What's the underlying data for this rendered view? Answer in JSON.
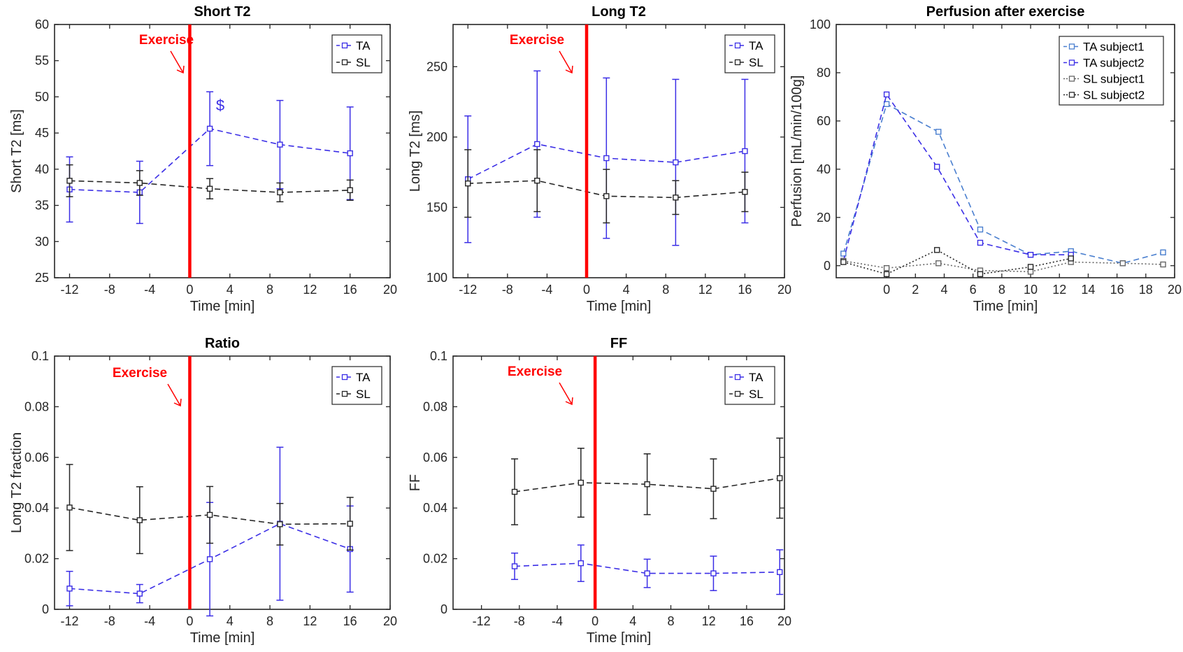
{
  "colors": {
    "ta": "#3b2ee6",
    "sl": "#262626",
    "ta_subject1": "#4a7fcf",
    "ta_subject2": "#3b2ee6",
    "sl_subject1": "#666666",
    "sl_subject2": "#262626",
    "exercise": "#ff0000"
  },
  "chart_data": [
    {
      "id": "short_t2",
      "type": "line",
      "title": "Short T2",
      "xlabel": "Time [min]",
      "ylabel": "Short T2 [ms]",
      "xlim": [
        -13.5,
        20
      ],
      "ylim": [
        25,
        60
      ],
      "xticks": [
        -12,
        -8,
        -4,
        0,
        4,
        8,
        12,
        16,
        20
      ],
      "xtick_labels": [
        "-12",
        "-8",
        "-4",
        "0",
        "4",
        "8",
        "12",
        "16",
        "20"
      ],
      "yticks": [
        25,
        30,
        35,
        40,
        45,
        50,
        55,
        60
      ],
      "ytick_labels": [
        "25",
        "30",
        "35",
        "40",
        "45",
        "50",
        "55",
        "60"
      ],
      "exercise_x": 0,
      "exercise_label": "Exercise",
      "annotation": "$",
      "legend": [
        "TA",
        "SL"
      ],
      "series": [
        {
          "name": "TA",
          "color_key": "ta",
          "dash": "dashed",
          "x": [
            -12,
            -5,
            2,
            9,
            16
          ],
          "y": [
            37.2,
            36.8,
            45.6,
            43.4,
            42.2
          ],
          "err": [
            4.5,
            4.3,
            5.1,
            6.1,
            6.4
          ]
        },
        {
          "name": "SL",
          "color_key": "sl",
          "dash": "dashed",
          "x": [
            -12,
            -5,
            2,
            9,
            16
          ],
          "y": [
            38.4,
            38.1,
            37.3,
            36.8,
            37.1
          ],
          "err": [
            2.2,
            1.7,
            1.4,
            1.3,
            1.4
          ]
        }
      ]
    },
    {
      "id": "long_t2",
      "type": "line",
      "title": "Long T2",
      "xlabel": "Time [min]",
      "ylabel": "Long T2 [ms]",
      "xlim": [
        -13.5,
        20
      ],
      "ylim": [
        100,
        280
      ],
      "xticks": [
        -12,
        -8,
        -4,
        0,
        4,
        8,
        12,
        16,
        20
      ],
      "xtick_labels": [
        "-12",
        "-8",
        "-4",
        "0",
        "4",
        "8",
        "12",
        "16",
        "20"
      ],
      "yticks": [
        100,
        150,
        200,
        250
      ],
      "ytick_labels": [
        "100",
        "150",
        "200",
        "250"
      ],
      "exercise_x": 0,
      "exercise_label": "Exercise",
      "legend": [
        "TA",
        "SL"
      ],
      "series": [
        {
          "name": "TA",
          "color_key": "ta",
          "dash": "dashed",
          "x": [
            -12,
            -5,
            2,
            9,
            16
          ],
          "y": [
            170,
            195,
            185,
            182,
            190
          ],
          "err": [
            45,
            52,
            57,
            59,
            51
          ]
        },
        {
          "name": "SL",
          "color_key": "sl",
          "dash": "dashed",
          "x": [
            -12,
            -5,
            2,
            9,
            16
          ],
          "y": [
            167,
            169,
            158,
            157,
            161
          ],
          "err": [
            24,
            22,
            19,
            12,
            14
          ]
        }
      ]
    },
    {
      "id": "perfusion",
      "type": "line",
      "title": "Perfusion after exercise",
      "xlabel": "Time [min]",
      "ylabel": "Perfusion [mL/min/100g]",
      "xlim": [
        -3.5,
        20
      ],
      "ylim": [
        -5,
        100
      ],
      "xticks": [
        0,
        2,
        4,
        6,
        8,
        10,
        12,
        14,
        16,
        18,
        20
      ],
      "xtick_labels": [
        "0",
        "2",
        "4",
        "6",
        "8",
        "10",
        "12",
        "14",
        "16",
        "18",
        "20"
      ],
      "yticks": [
        0,
        20,
        40,
        60,
        80,
        100
      ],
      "ytick_labels": [
        "0",
        "20",
        "40",
        "60",
        "80",
        "100"
      ],
      "legend": [
        "TA subject1",
        "TA subject2",
        "SL subject1",
        "SL subject2"
      ],
      "series": [
        {
          "name": "TA subject1",
          "color_key": "ta_subject1",
          "dash": "dashed",
          "x": [
            -3,
            0,
            3.6,
            6.5,
            10,
            12.8,
            16.4,
            19.2
          ],
          "y": [
            5,
            67,
            55.5,
            15,
            4.5,
            6,
            1,
            5.5
          ]
        },
        {
          "name": "TA subject2",
          "color_key": "ta_subject2",
          "dash": "dashed",
          "x": [
            -3,
            0,
            3.5,
            6.5,
            10,
            12.8
          ],
          "y": [
            2,
            71,
            41,
            9.5,
            4.5,
            4.5
          ]
        },
        {
          "name": "SL subject1",
          "color_key": "sl_subject1",
          "dash": "dotted",
          "x": [
            -3,
            0,
            3.6,
            6.5,
            10,
            12.8,
            16.4,
            19.2
          ],
          "y": [
            2,
            -1,
            1,
            -2,
            -2.5,
            1.5,
            1,
            0.5
          ]
        },
        {
          "name": "SL subject2",
          "color_key": "sl_subject2",
          "dash": "dotted",
          "x": [
            -3,
            0,
            3.5,
            6.5,
            10,
            12.8
          ],
          "y": [
            1.5,
            -3.5,
            6.5,
            -3.5,
            -0.5,
            3
          ]
        }
      ]
    },
    {
      "id": "ratio",
      "type": "line",
      "title": "Ratio",
      "xlabel": "Time [min]",
      "ylabel": "Long T2 fraction",
      "xlim": [
        -13.5,
        20
      ],
      "ylim": [
        0,
        0.1
      ],
      "xticks": [
        -12,
        -8,
        -4,
        0,
        4,
        8,
        12,
        16,
        20
      ],
      "xtick_labels": [
        "-12",
        "-8",
        "-4",
        "0",
        "4",
        "8",
        "12",
        "16",
        "20"
      ],
      "yticks": [
        0,
        0.02,
        0.04,
        0.06,
        0.08,
        0.1
      ],
      "ytick_labels": [
        "0",
        "0.02",
        "0.04",
        "0.06",
        "0.08",
        "0.1"
      ],
      "exercise_x": 0,
      "exercise_label": "Exercise",
      "legend": [
        "TA",
        "SL"
      ],
      "series": [
        {
          "name": "TA",
          "color_key": "ta",
          "dash": "dashed",
          "x": [
            -12,
            -5,
            2,
            9,
            16
          ],
          "y": [
            0.0082,
            0.0062,
            0.0198,
            0.0338,
            0.0238
          ],
          "err": [
            0.0068,
            0.0036,
            0.0224,
            0.0302,
            0.017
          ]
        },
        {
          "name": "SL",
          "color_key": "sl",
          "dash": "dashed",
          "x": [
            -12,
            -5,
            2,
            9,
            16
          ],
          "y": [
            0.0402,
            0.0352,
            0.0373,
            0.0336,
            0.0338
          ],
          "err": [
            0.017,
            0.0132,
            0.0112,
            0.0082,
            0.0104
          ]
        }
      ]
    },
    {
      "id": "ff",
      "type": "line",
      "title": "FF",
      "xlabel": "Time [min]",
      "ylabel": "FF",
      "xlim": [
        -15,
        20
      ],
      "ylim": [
        0,
        0.1
      ],
      "xticks": [
        -12,
        -8,
        -4,
        0,
        4,
        8,
        12,
        16,
        20
      ],
      "xtick_labels": [
        "-12",
        "-8",
        "-4",
        "0",
        "4",
        "8",
        "12",
        "16",
        "20"
      ],
      "yticks": [
        0,
        0.02,
        0.04,
        0.06,
        0.08,
        0.1
      ],
      "ytick_labels": [
        "0",
        "0.02",
        "0.04",
        "0.06",
        "0.08",
        "0.1"
      ],
      "exercise_x": 0,
      "exercise_label": "Exercise",
      "legend": [
        "TA",
        "SL"
      ],
      "series": [
        {
          "name": "TA",
          "color_key": "ta",
          "dash": "dashed",
          "x": [
            -8.5,
            -1.5,
            5.5,
            12.5,
            19.5
          ],
          "y": [
            0.017,
            0.0182,
            0.0142,
            0.0142,
            0.0147
          ],
          "err": [
            0.0052,
            0.0072,
            0.0056,
            0.0068,
            0.0088
          ]
        },
        {
          "name": "SL",
          "color_key": "sl",
          "dash": "dashed",
          "x": [
            -8.5,
            -1.5,
            5.5,
            12.5,
            19.5
          ],
          "y": [
            0.0464,
            0.05,
            0.0494,
            0.0476,
            0.0518
          ],
          "err": [
            0.013,
            0.0136,
            0.012,
            0.0118,
            0.0158
          ]
        }
      ]
    }
  ]
}
